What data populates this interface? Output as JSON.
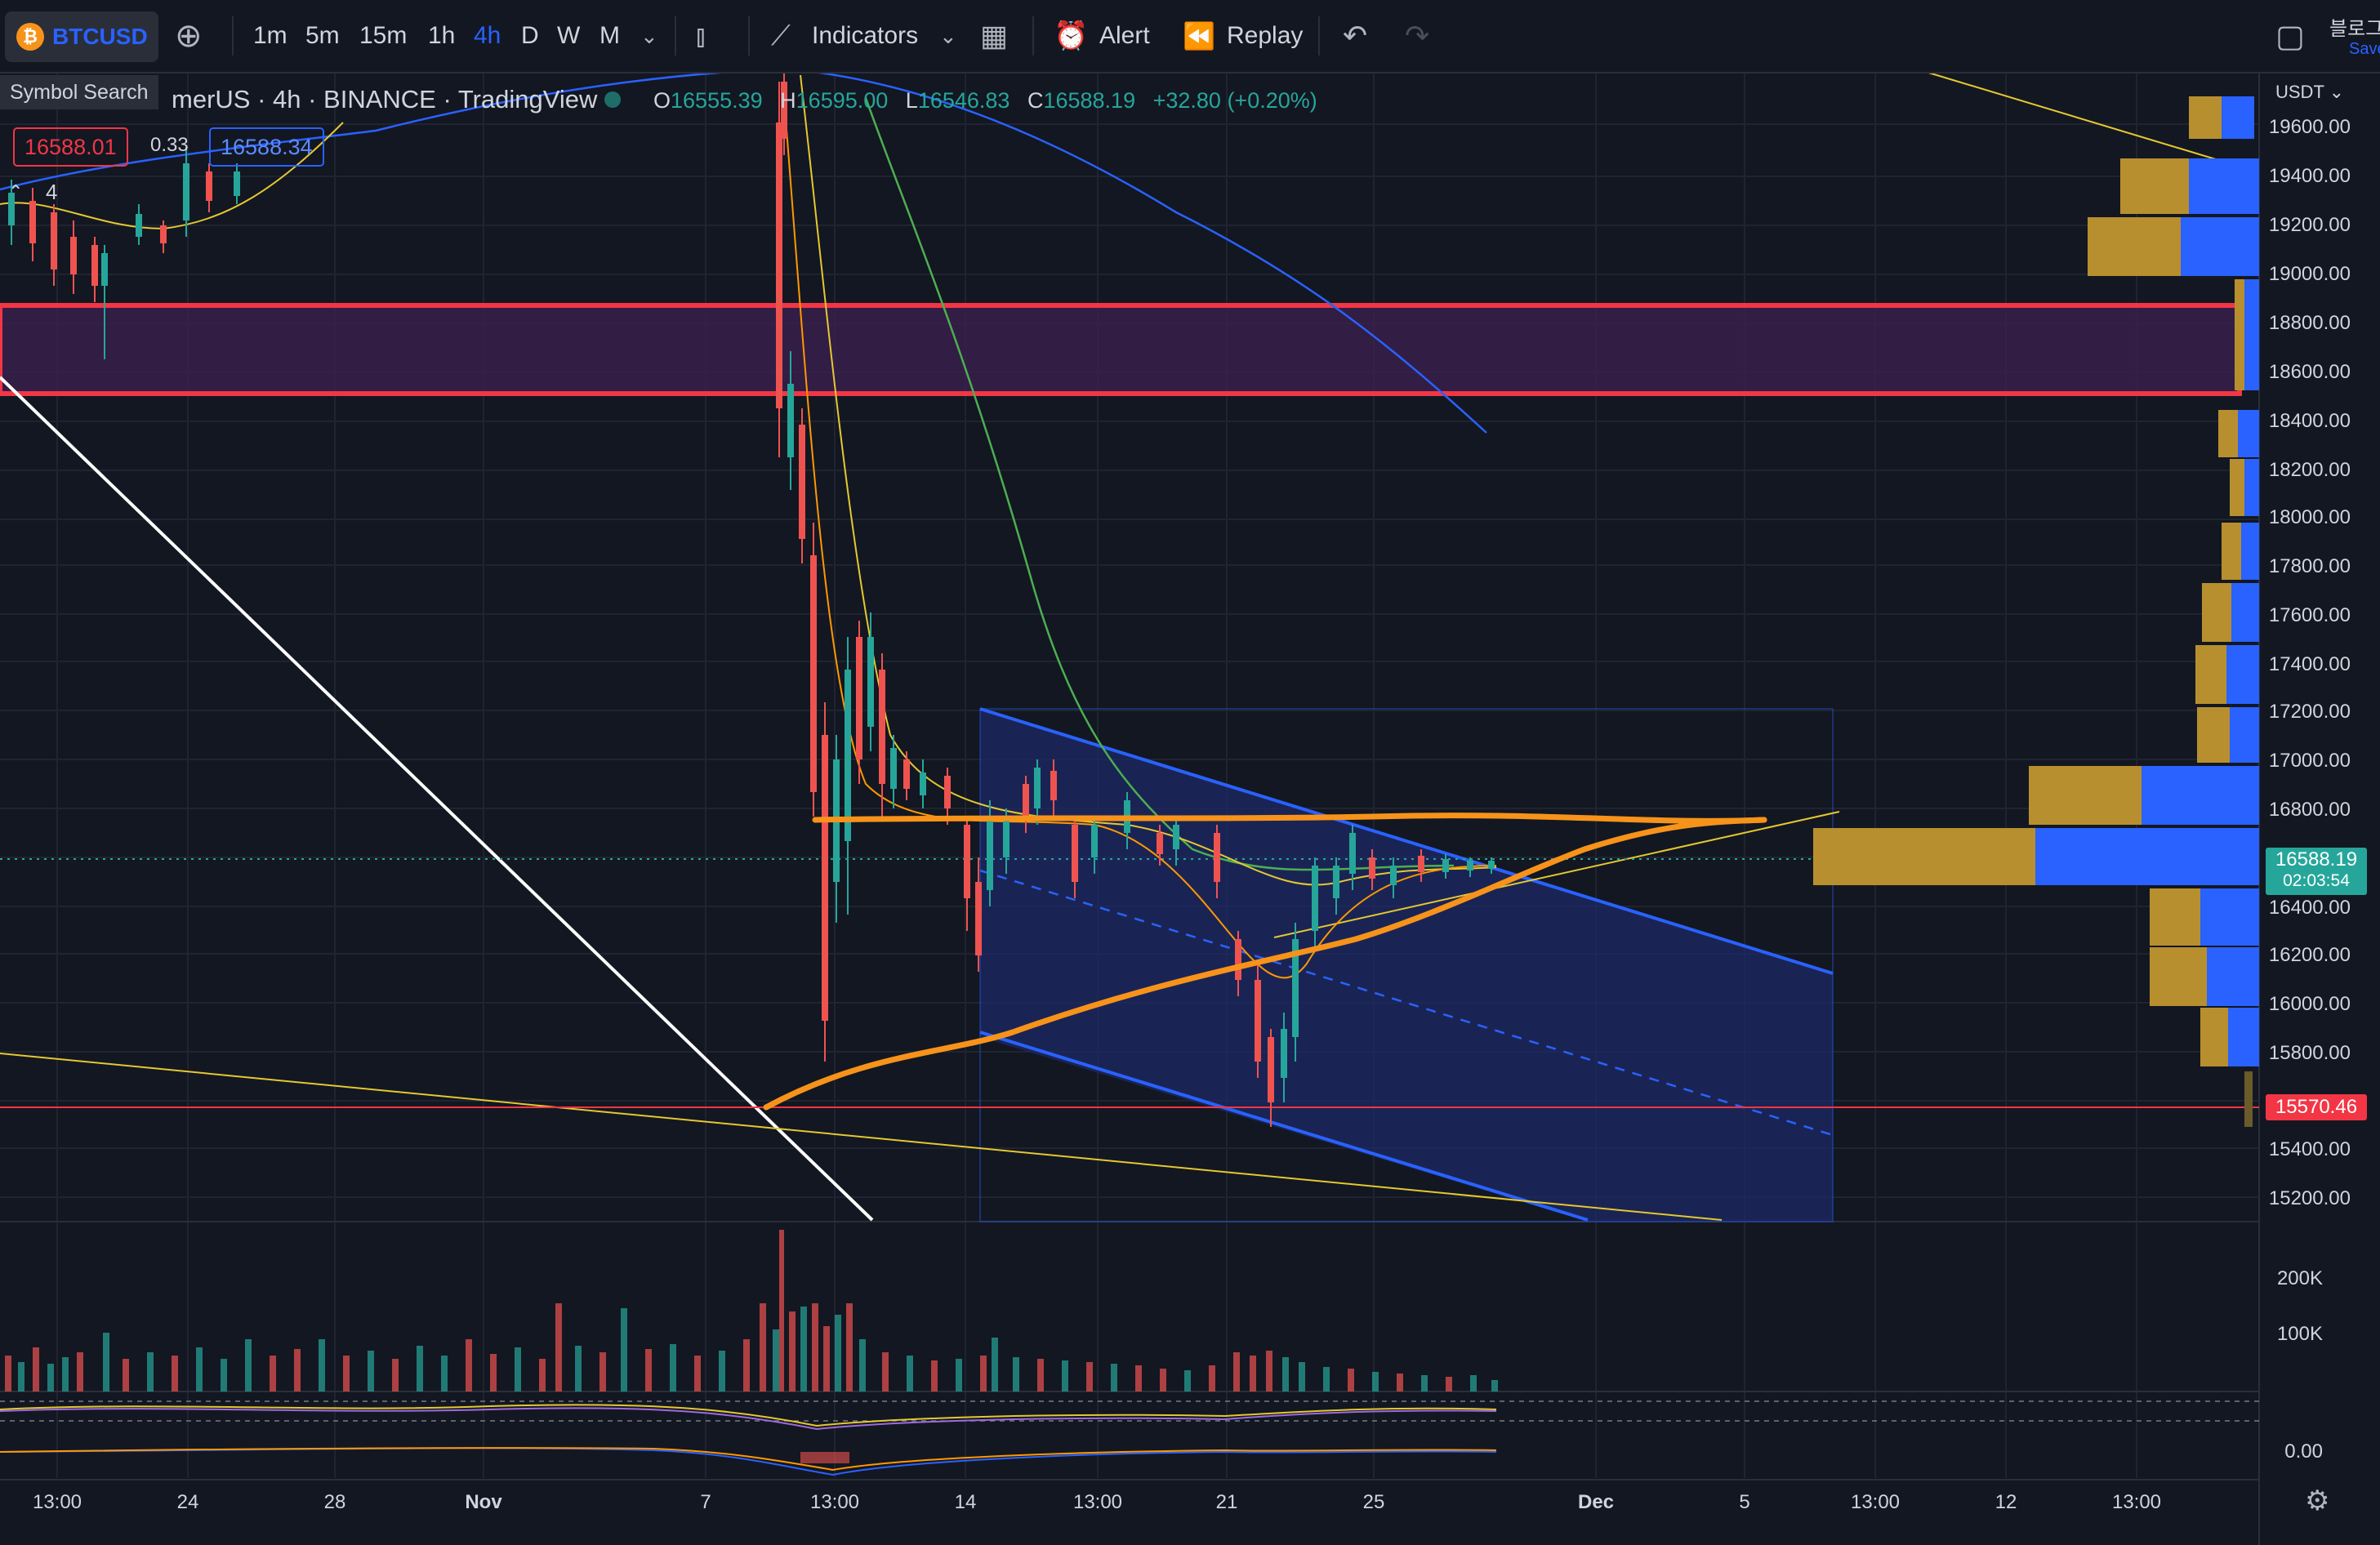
{
  "toolbar": {
    "symbol": "BTCUSD",
    "coin_glyph": "₿",
    "intervals": [
      "1m",
      "5m",
      "15m",
      "1h",
      "4h",
      "D",
      "W",
      "M"
    ],
    "active_interval": "4h",
    "indicators_label": "Indicators",
    "alert_label": "Alert",
    "replay_label": "Replay",
    "right_text_top": "블로그",
    "right_text_bottom": "Save"
  },
  "tooltip": {
    "symbol_search": "Symbol Search"
  },
  "legend": {
    "title": "merUS · 4h · BINANCE · TradingView",
    "open_label": "O",
    "open": "16555.39",
    "high_label": "H",
    "high": "16595.00",
    "low_label": "L",
    "low": "16546.83",
    "close_label": "C",
    "close": "16588.19",
    "change": "+32.80 (+0.20%)",
    "sell_price": "16588.01",
    "spread": "0.33",
    "buy_price": "16588.34",
    "collapsed_count": "4"
  },
  "price_axis": {
    "currency": "USDT",
    "labels": [
      "19600.00",
      "19400.00",
      "19200.00",
      "19000.00",
      "18800.00",
      "18600.00",
      "18400.00",
      "18200.00",
      "18000.00",
      "17800.00",
      "17600.00",
      "17400.00",
      "17200.00",
      "17000.00",
      "16800.00",
      "16400.00",
      "16200.00",
      "16000.00",
      "15800.00",
      "15400.00",
      "15200.00"
    ],
    "current_price": "16588.19",
    "countdown": "02:03:54",
    "marked_price": "15570.46",
    "volume_labels": [
      "200K",
      "100K"
    ],
    "indicator_zero": "0.00"
  },
  "time_axis": {
    "labels": [
      "13:00",
      "24",
      "28",
      "Nov",
      "7",
      "13:00",
      "14",
      "13:00",
      "21",
      "25",
      "Dec",
      "5",
      "13:00",
      "12",
      "13:00"
    ]
  },
  "colors": {
    "background": "#131722",
    "bull": "#26a69a",
    "bear": "#ef5350",
    "zone_border": "#f23645",
    "channel": "#2962ff",
    "trend_orange": "#f7931a"
  }
}
